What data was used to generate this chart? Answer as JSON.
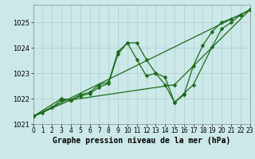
{
  "series": [
    {
      "name": "line_wavy1",
      "x": [
        0,
        1,
        2,
        3,
        4,
        5,
        6,
        7,
        8,
        9,
        10,
        11,
        12,
        13,
        14,
        15,
        16,
        17,
        18,
        19,
        20,
        21,
        22,
        23
      ],
      "y": [
        1021.3,
        1021.45,
        1021.65,
        1021.95,
        1021.95,
        1022.15,
        1022.25,
        1022.55,
        1022.65,
        1023.85,
        1024.2,
        1024.2,
        1023.55,
        1023.0,
        1022.55,
        1021.85,
        1022.15,
        1023.3,
        1024.1,
        1024.65,
        1025.0,
        1025.15,
        1025.3,
        1025.5
      ]
    },
    {
      "name": "line_wavy2",
      "x": [
        0,
        3,
        4,
        5,
        6,
        7,
        8,
        9,
        10,
        11,
        12,
        13,
        14,
        15,
        16,
        17,
        19,
        20,
        21,
        22,
        23
      ],
      "y": [
        1021.3,
        1022.0,
        1021.95,
        1022.1,
        1022.2,
        1022.45,
        1022.6,
        1023.75,
        1024.2,
        1023.55,
        1022.9,
        1023.0,
        1022.85,
        1021.85,
        1022.2,
        1022.55,
        1024.05,
        1024.75,
        1025.0,
        1025.3,
        1025.5
      ]
    },
    {
      "name": "line_straight",
      "x": [
        0,
        23
      ],
      "y": [
        1021.3,
        1025.5
      ]
    },
    {
      "name": "line_lower",
      "x": [
        0,
        4,
        15,
        23
      ],
      "y": [
        1021.3,
        1021.95,
        1022.55,
        1025.5
      ]
    }
  ],
  "line_color": "#1a6b1a",
  "marker": "D",
  "marker_size": 2.5,
  "background_color": "#cce8e8",
  "grid_color": "#aacfcf",
  "xlim": [
    0,
    23
  ],
  "ylim": [
    1021.0,
    1025.7
  ],
  "xticks": [
    0,
    1,
    2,
    3,
    4,
    5,
    6,
    7,
    8,
    9,
    10,
    11,
    12,
    13,
    14,
    15,
    16,
    17,
    18,
    19,
    20,
    21,
    22,
    23
  ],
  "yticks": [
    1021,
    1022,
    1023,
    1024,
    1025
  ],
  "xlabel": "Graphe pression niveau de la mer (hPa)",
  "xlabel_fontsize": 7,
  "tick_fontsize": 6,
  "linewidth": 0.9,
  "figsize": [
    3.2,
    2.0
  ],
  "dpi": 100
}
